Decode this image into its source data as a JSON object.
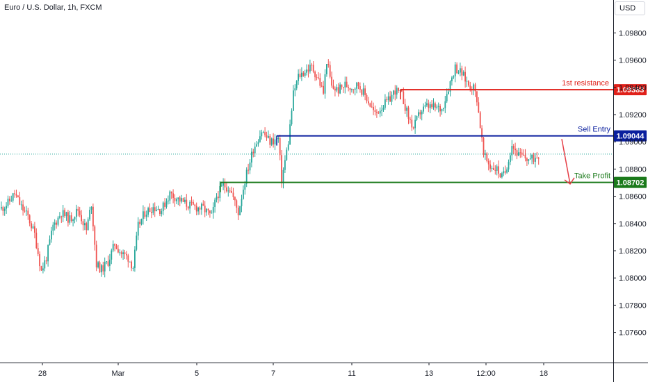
{
  "header": {
    "symbol": "Euro / U.S. Dollar, 1h, FXCM",
    "currency": "USD"
  },
  "colors": {
    "up": "#26a69a",
    "down": "#ef5350",
    "resistance": "#e0211a",
    "entry": "#0a1f9e",
    "target": "#1b7a1b",
    "arrow": "#e53d45",
    "axis_text": "#131722",
    "axis_line": "#131722"
  },
  "chart_data": {
    "type": "candlestick",
    "symbol": "Euro / U.S. Dollar",
    "timeframe": "1h",
    "source": "FXCM",
    "ylim": [
      1.0745,
      1.0995
    ],
    "y_ticks": [
      1.076,
      1.078,
      1.08,
      1.082,
      1.084,
      1.086,
      1.088,
      1.09,
      1.092,
      1.094,
      1.096,
      1.098
    ],
    "y_tick_labels": [
      "1.07600",
      "1.07800",
      "1.08000",
      "1.08200",
      "1.08400",
      "1.08600",
      "1.08800",
      "1.09000",
      "1.09200",
      "1.09400",
      "1.09600",
      "1.09800"
    ],
    "x_ticks": [
      "28",
      "Mar",
      "5",
      "7",
      "11",
      "13",
      "12:00",
      "18"
    ],
    "current_price": 1.0891,
    "levels": [
      {
        "name": "1st resistance",
        "price": 1.09383,
        "price_label": "1.09383"
      },
      {
        "name": "Sell Entry",
        "price": 1.09044,
        "price_label": "1.09044"
      },
      {
        "name": "Take Profit",
        "price": 1.08702,
        "price_label": "1.08702"
      }
    ],
    "projection": {
      "from_price": 1.0902,
      "to_price": 1.0869
    },
    "anchors": [
      [
        0,
        1.0851
      ],
      [
        4,
        1.0855
      ],
      [
        8,
        1.0862
      ],
      [
        12,
        1.0852
      ],
      [
        16,
        1.0845
      ],
      [
        20,
        1.0832
      ],
      [
        24,
        1.0805
      ],
      [
        27,
        1.0815
      ],
      [
        31,
        1.0838
      ],
      [
        36,
        1.0848
      ],
      [
        41,
        1.0843
      ],
      [
        46,
        1.085
      ],
      [
        51,
        1.0835
      ],
      [
        54,
        1.0855
      ],
      [
        57,
        1.081
      ],
      [
        60,
        1.0806
      ],
      [
        64,
        1.0812
      ],
      [
        68,
        1.0825
      ],
      [
        72,
        1.0818
      ],
      [
        76,
        1.0815
      ],
      [
        79,
        1.0808
      ],
      [
        82,
        1.0838
      ],
      [
        86,
        1.0848
      ],
      [
        91,
        1.0852
      ],
      [
        96,
        1.085
      ],
      [
        101,
        1.0862
      ],
      [
        106,
        1.0858
      ],
      [
        111,
        1.0854
      ],
      [
        116,
        1.0852
      ],
      [
        121,
        1.0851
      ],
      [
        126,
        1.0845
      ],
      [
        129,
        1.086
      ],
      [
        133,
        1.0868
      ],
      [
        137,
        1.0866
      ],
      [
        142,
        1.0848
      ],
      [
        146,
        1.0872
      ],
      [
        151,
        1.0895
      ],
      [
        156,
        1.0908
      ],
      [
        161,
        1.09
      ],
      [
        166,
        1.0902
      ],
      [
        168,
        1.0872
      ],
      [
        172,
        1.09
      ],
      [
        175,
        1.0935
      ],
      [
        178,
        1.0948
      ],
      [
        182,
        1.0952
      ],
      [
        186,
        1.0955
      ],
      [
        190,
        1.0946
      ],
      [
        193,
        1.0936
      ],
      [
        195,
        1.096
      ],
      [
        198,
        1.094
      ],
      [
        202,
        1.0938
      ],
      [
        206,
        1.0942
      ],
      [
        210,
        1.094
      ],
      [
        214,
        1.0942
      ],
      [
        219,
        1.0932
      ],
      [
        224,
        1.092
      ],
      [
        228,
        1.0926
      ],
      [
        232,
        1.093
      ],
      [
        236,
        1.0938
      ],
      [
        240,
        1.0934
      ],
      [
        244,
        1.0918
      ],
      [
        247,
        1.091
      ],
      [
        251,
        1.0922
      ],
      [
        255,
        1.0926
      ],
      [
        260,
        1.0925
      ],
      [
        264,
        1.0924
      ],
      [
        268,
        1.094
      ],
      [
        272,
        1.0955
      ],
      [
        276,
        1.095
      ],
      [
        280,
        1.0942
      ],
      [
        283,
        1.094
      ],
      [
        285,
        1.0932
      ],
      [
        287,
        1.0912
      ],
      [
        289,
        1.089
      ],
      [
        293,
        1.0882
      ],
      [
        297,
        1.088
      ],
      [
        300,
        1.0874
      ],
      [
        302,
        1.0878
      ],
      [
        306,
        1.0898
      ],
      [
        310,
        1.089
      ],
      [
        314,
        1.0888
      ],
      [
        318,
        1.0887
      ],
      [
        322,
        1.0891
      ]
    ]
  }
}
